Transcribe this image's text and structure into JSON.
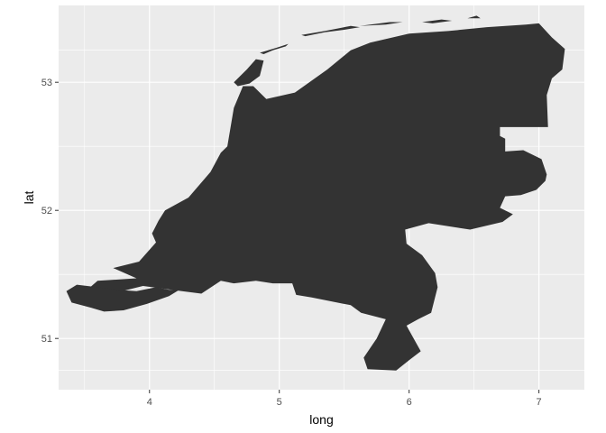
{
  "chart_data": {
    "type": "map",
    "xlabel": "long",
    "ylabel": "lat",
    "xlim": [
      3.3,
      7.35
    ],
    "ylim": [
      50.6,
      53.6
    ],
    "x_major_ticks": [
      4,
      5,
      6,
      7
    ],
    "x_minor_ticks": [
      3.5,
      4.5,
      5.5,
      6.5
    ],
    "y_major_ticks": [
      51,
      52,
      53
    ],
    "y_minor_ticks": [
      50.75,
      51.5,
      52.5,
      53.25
    ],
    "x_tick_labels": [
      "4",
      "5",
      "6",
      "7"
    ],
    "y_tick_labels": [
      "51",
      "52",
      "53"
    ],
    "grid": true,
    "colors": {
      "panel_background": "#ebebeb",
      "grid_lines": "#ffffff",
      "fill": "#333333"
    },
    "regions": [
      {
        "name": "mainland",
        "points": [
          [
            7.2,
            53.26
          ],
          [
            7.18,
            53.1
          ],
          [
            7.1,
            53.03
          ],
          [
            7.06,
            52.9
          ],
          [
            7.07,
            52.65
          ],
          [
            6.7,
            52.65
          ],
          [
            6.7,
            52.58
          ],
          [
            6.74,
            52.56
          ],
          [
            6.74,
            52.46
          ],
          [
            6.88,
            52.47
          ],
          [
            7.02,
            52.4
          ],
          [
            7.06,
            52.28
          ],
          [
            7.05,
            52.23
          ],
          [
            6.98,
            52.16
          ],
          [
            6.86,
            52.12
          ],
          [
            6.74,
            52.11
          ],
          [
            6.7,
            52.02
          ],
          [
            6.8,
            51.97
          ],
          [
            6.72,
            51.91
          ],
          [
            6.47,
            51.85
          ],
          [
            6.15,
            51.9
          ],
          [
            5.97,
            51.85
          ],
          [
            5.98,
            51.74
          ],
          [
            6.1,
            51.65
          ],
          [
            6.2,
            51.51
          ],
          [
            6.22,
            51.4
          ],
          [
            6.17,
            51.2
          ],
          [
            6.07,
            51.15
          ],
          [
            5.98,
            51.1
          ],
          [
            6.09,
            50.9
          ],
          [
            6.0,
            50.83
          ],
          [
            5.9,
            50.75
          ],
          [
            5.68,
            50.76
          ],
          [
            5.65,
            50.85
          ],
          [
            5.75,
            51.0
          ],
          [
            5.82,
            51.15
          ],
          [
            5.63,
            51.2
          ],
          [
            5.55,
            51.26
          ],
          [
            5.25,
            51.32
          ],
          [
            5.13,
            51.34
          ],
          [
            5.1,
            51.43
          ],
          [
            4.95,
            51.43
          ],
          [
            4.82,
            51.45
          ],
          [
            4.65,
            51.43
          ],
          [
            4.55,
            51.45
          ],
          [
            4.4,
            51.35
          ],
          [
            4.25,
            51.37
          ],
          [
            3.95,
            51.41
          ],
          [
            3.75,
            51.36
          ],
          [
            3.6,
            51.34
          ],
          [
            3.52,
            51.38
          ],
          [
            3.6,
            51.45
          ],
          [
            3.9,
            51.47
          ],
          [
            3.72,
            51.55
          ],
          [
            3.92,
            51.6
          ],
          [
            3.98,
            51.67
          ],
          [
            4.05,
            51.75
          ],
          [
            4.02,
            51.82
          ],
          [
            4.07,
            51.92
          ],
          [
            4.12,
            52.0
          ],
          [
            4.3,
            52.1
          ],
          [
            4.47,
            52.3
          ],
          [
            4.55,
            52.45
          ],
          [
            4.6,
            52.5
          ],
          [
            4.65,
            52.8
          ],
          [
            4.72,
            52.97
          ],
          [
            4.8,
            52.97
          ],
          [
            4.9,
            52.87
          ],
          [
            5.12,
            52.92
          ],
          [
            5.37,
            53.1
          ],
          [
            5.55,
            53.25
          ],
          [
            5.7,
            53.31
          ],
          [
            6.0,
            53.38
          ],
          [
            6.3,
            53.4
          ],
          [
            6.6,
            53.43
          ],
          [
            6.9,
            53.45
          ],
          [
            7.0,
            53.46
          ],
          [
            7.1,
            53.35
          ]
        ]
      },
      {
        "name": "zeeland-south-island",
        "points": [
          [
            3.36,
            51.37
          ],
          [
            3.44,
            51.42
          ],
          [
            3.6,
            51.4
          ],
          [
            3.75,
            51.38
          ],
          [
            3.9,
            51.37
          ],
          [
            4.05,
            51.4
          ],
          [
            4.15,
            51.38
          ],
          [
            4.23,
            51.38
          ],
          [
            4.15,
            51.33
          ],
          [
            3.98,
            51.27
          ],
          [
            3.8,
            51.22
          ],
          [
            3.65,
            51.21
          ],
          [
            3.55,
            51.24
          ],
          [
            3.4,
            51.28
          ]
        ]
      },
      {
        "name": "texel",
        "points": [
          [
            4.65,
            53.0
          ],
          [
            4.75,
            53.1
          ],
          [
            4.82,
            53.18
          ],
          [
            4.88,
            53.17
          ],
          [
            4.85,
            53.05
          ],
          [
            4.77,
            52.99
          ],
          [
            4.68,
            52.97
          ]
        ]
      },
      {
        "name": "vlieland",
        "points": [
          [
            4.85,
            53.23
          ],
          [
            4.98,
            53.27
          ],
          [
            5.07,
            53.3
          ],
          [
            5.05,
            53.28
          ],
          [
            4.95,
            53.25
          ],
          [
            4.88,
            53.22
          ]
        ]
      },
      {
        "name": "terschelling",
        "points": [
          [
            5.17,
            53.37
          ],
          [
            5.35,
            53.4
          ],
          [
            5.55,
            53.44
          ],
          [
            5.62,
            53.43
          ],
          [
            5.5,
            53.41
          ],
          [
            5.35,
            53.39
          ],
          [
            5.2,
            53.36
          ]
        ]
      },
      {
        "name": "ameland",
        "points": [
          [
            5.62,
            53.44
          ],
          [
            5.85,
            53.47
          ],
          [
            5.95,
            53.47
          ],
          [
            5.82,
            53.45
          ]
        ]
      },
      {
        "name": "schiermonnikoog",
        "points": [
          [
            6.1,
            53.47
          ],
          [
            6.25,
            53.49
          ],
          [
            6.33,
            53.48
          ],
          [
            6.18,
            53.46
          ]
        ]
      },
      {
        "name": "rottumeroog",
        "points": [
          [
            6.45,
            53.5
          ],
          [
            6.52,
            53.52
          ],
          [
            6.55,
            53.5
          ]
        ]
      }
    ]
  }
}
